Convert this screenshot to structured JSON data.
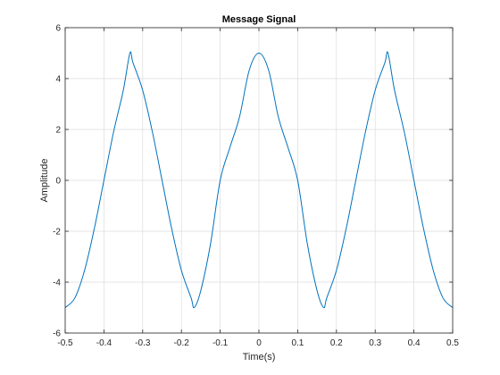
{
  "chart_data": {
    "type": "line",
    "title": "Message Signal",
    "xlabel": "Time(s)",
    "ylabel": "Amplitude",
    "xlim": [
      -0.5,
      0.5
    ],
    "ylim": [
      -6,
      6
    ],
    "xticks": [
      -0.5,
      -0.4,
      -0.3,
      -0.2,
      -0.1,
      0,
      0.1,
      0.2,
      0.3,
      0.4,
      0.5
    ],
    "xtick_labels": [
      "-0.5",
      "-0.4",
      "-0.3",
      "-0.2",
      "-0.1",
      "0",
      "0.1",
      "0.2",
      "0.3",
      "0.4",
      "0.5"
    ],
    "yticks": [
      -6,
      -4,
      -2,
      0,
      2,
      4,
      6
    ],
    "ytick_labels": [
      "-6",
      "-4",
      "-2",
      "0",
      "2",
      "4",
      "6"
    ],
    "grid": true,
    "line_color": "#0072BD",
    "series": [
      {
        "x": [
          -0.5,
          -0.475,
          -0.45,
          -0.425,
          -0.4,
          -0.375,
          -0.35,
          -0.333,
          -0.325,
          -0.3,
          -0.275,
          -0.25,
          -0.225,
          -0.2,
          -0.175,
          -0.167,
          -0.15,
          -0.125,
          -0.1,
          -0.075,
          -0.05,
          -0.025,
          0,
          0.025,
          0.05,
          0.075,
          0.1,
          0.125,
          0.15,
          0.167,
          0.175,
          0.2,
          0.225,
          0.25,
          0.275,
          0.3,
          0.325,
          0.333,
          0.35,
          0.375,
          0.4,
          0.425,
          0.45,
          0.475,
          0.5
        ],
        "y": [
          -5.0,
          -4.62,
          -3.54,
          -1.91,
          0.0,
          1.91,
          3.54,
          5.0,
          4.62,
          3.54,
          1.91,
          0.0,
          -1.91,
          -3.54,
          -4.62,
          -5.0,
          -4.33,
          -2.5,
          0.0,
          1.29,
          2.5,
          4.33,
          5.0,
          4.33,
          2.5,
          1.29,
          0.0,
          -2.5,
          -4.33,
          -5.0,
          -4.62,
          -3.54,
          -1.91,
          0.0,
          1.91,
          3.54,
          4.62,
          5.0,
          3.54,
          1.91,
          0.0,
          -1.91,
          -3.54,
          -4.62,
          -5.0
        ]
      }
    ]
  }
}
